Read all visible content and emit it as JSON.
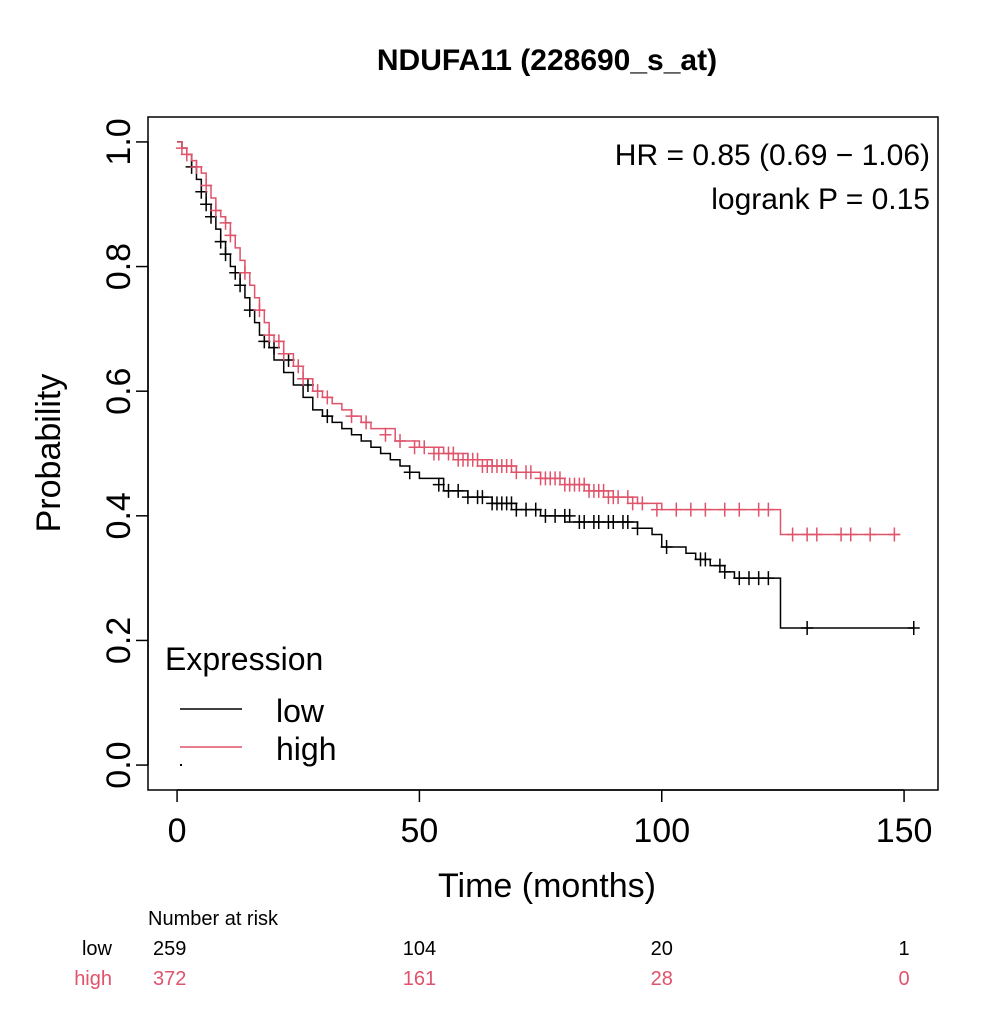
{
  "chart_data": {
    "type": "line",
    "title": "NDUFA11 (228690_s_at)",
    "xlabel": "Time (months)",
    "ylabel": "Probability",
    "xlim": [
      -6,
      157
    ],
    "ylim": [
      -0.04,
      1.04
    ],
    "x_ticks": [
      0,
      50,
      100,
      150
    ],
    "y_ticks": [
      0.0,
      0.2,
      0.4,
      0.6,
      0.8,
      1.0
    ],
    "x_tick_labels": [
      "0",
      "50",
      "100",
      "150"
    ],
    "y_tick_labels": [
      "0.0",
      "0.2",
      "0.4",
      "0.6",
      "0.8",
      "1.0"
    ],
    "grid": false,
    "annotations": [
      "HR = 0.85 (0.69 − 1.06)",
      "logrank P = 0.15"
    ],
    "legend": {
      "title": "Expression",
      "position": "bottom-left",
      "entries": [
        "low",
        "high"
      ]
    },
    "series": [
      {
        "name": "low",
        "color": "#000000",
        "step": true,
        "x": [
          0,
          1,
          2,
          3,
          4,
          5,
          6,
          7,
          8,
          9,
          10,
          11,
          12,
          13,
          14,
          15,
          16,
          17,
          18,
          19,
          20,
          22,
          24,
          26,
          28,
          30,
          32,
          34,
          36,
          38,
          40,
          42,
          44,
          46,
          48,
          50,
          55,
          60,
          65,
          70,
          75,
          80,
          85,
          90,
          95,
          98,
          100,
          103,
          105,
          107,
          110,
          113,
          115,
          120,
          124,
          124.5,
          130,
          140,
          152
        ],
        "y": [
          1.0,
          0.99,
          0.98,
          0.96,
          0.94,
          0.92,
          0.9,
          0.88,
          0.86,
          0.84,
          0.82,
          0.8,
          0.79,
          0.77,
          0.75,
          0.73,
          0.71,
          0.69,
          0.68,
          0.67,
          0.65,
          0.63,
          0.61,
          0.59,
          0.57,
          0.56,
          0.55,
          0.54,
          0.53,
          0.52,
          0.51,
          0.5,
          0.49,
          0.48,
          0.47,
          0.46,
          0.44,
          0.43,
          0.42,
          0.41,
          0.4,
          0.39,
          0.39,
          0.39,
          0.38,
          0.37,
          0.35,
          0.35,
          0.34,
          0.33,
          0.32,
          0.31,
          0.3,
          0.3,
          0.3,
          0.22,
          0.22,
          0.22,
          0.22
        ],
        "censor_x": [
          3,
          5,
          6,
          7,
          9,
          10,
          12,
          13,
          15,
          18,
          20,
          23,
          27,
          31,
          48,
          54,
          56,
          58,
          60,
          62,
          63,
          65,
          66,
          67,
          68,
          69,
          70,
          72,
          74,
          76,
          78,
          80,
          81,
          83,
          84,
          86,
          87,
          89,
          90,
          92,
          93,
          95,
          101,
          108,
          109,
          112,
          113,
          116,
          118,
          120,
          122,
          130,
          152
        ],
        "censor_y": [
          0.96,
          0.92,
          0.9,
          0.88,
          0.84,
          0.82,
          0.79,
          0.77,
          0.73,
          0.68,
          0.67,
          0.65,
          0.61,
          0.56,
          0.47,
          0.45,
          0.44,
          0.44,
          0.43,
          0.43,
          0.43,
          0.42,
          0.42,
          0.42,
          0.42,
          0.42,
          0.41,
          0.41,
          0.41,
          0.4,
          0.4,
          0.4,
          0.4,
          0.39,
          0.39,
          0.39,
          0.39,
          0.39,
          0.39,
          0.39,
          0.39,
          0.38,
          0.35,
          0.33,
          0.33,
          0.32,
          0.31,
          0.3,
          0.3,
          0.3,
          0.3,
          0.22,
          0.22
        ]
      },
      {
        "name": "high",
        "color": "#DF536B",
        "step": true,
        "x": [
          0,
          1,
          2,
          3,
          4,
          5,
          6,
          7,
          8,
          9,
          10,
          11,
          12,
          13,
          14,
          15,
          16,
          17,
          18,
          19,
          20,
          22,
          24,
          26,
          28,
          30,
          32,
          34,
          36,
          38,
          40,
          45,
          50,
          55,
          60,
          65,
          70,
          75,
          80,
          85,
          90,
          95,
          100,
          110,
          120,
          124,
          124.5,
          149
        ],
        "y": [
          1.0,
          0.99,
          0.98,
          0.97,
          0.96,
          0.95,
          0.93,
          0.91,
          0.89,
          0.88,
          0.87,
          0.85,
          0.83,
          0.81,
          0.79,
          0.77,
          0.75,
          0.73,
          0.71,
          0.69,
          0.68,
          0.66,
          0.64,
          0.62,
          0.6,
          0.59,
          0.58,
          0.57,
          0.56,
          0.55,
          0.54,
          0.52,
          0.51,
          0.5,
          0.49,
          0.48,
          0.47,
          0.46,
          0.45,
          0.44,
          0.43,
          0.42,
          0.41,
          0.41,
          0.41,
          0.41,
          0.37,
          0.37
        ],
        "censor_x": [
          1,
          2,
          4,
          6,
          8,
          10,
          11,
          14,
          17,
          19,
          21,
          22,
          25,
          26,
          29,
          31,
          36,
          39,
          43,
          46,
          49,
          51,
          53,
          54,
          56,
          57,
          58,
          59,
          60,
          61,
          62,
          63,
          64,
          65,
          66,
          67,
          68,
          69,
          70,
          72,
          73,
          75,
          76,
          77,
          78,
          79,
          80,
          81,
          82,
          83,
          84,
          85,
          86,
          87,
          88,
          89,
          90,
          91,
          93,
          94,
          96,
          99,
          103,
          106,
          109,
          113,
          116,
          120,
          122,
          127,
          130,
          132,
          137,
          139,
          143,
          148
        ],
        "censor_y": [
          0.99,
          0.98,
          0.96,
          0.93,
          0.89,
          0.87,
          0.85,
          0.79,
          0.73,
          0.69,
          0.68,
          0.66,
          0.64,
          0.62,
          0.6,
          0.59,
          0.56,
          0.55,
          0.53,
          0.52,
          0.51,
          0.51,
          0.5,
          0.5,
          0.5,
          0.5,
          0.49,
          0.49,
          0.49,
          0.49,
          0.49,
          0.48,
          0.48,
          0.48,
          0.48,
          0.48,
          0.48,
          0.48,
          0.47,
          0.47,
          0.47,
          0.46,
          0.46,
          0.46,
          0.46,
          0.46,
          0.45,
          0.45,
          0.45,
          0.45,
          0.45,
          0.44,
          0.44,
          0.44,
          0.44,
          0.43,
          0.43,
          0.43,
          0.43,
          0.42,
          0.42,
          0.41,
          0.41,
          0.41,
          0.41,
          0.41,
          0.41,
          0.41,
          0.41,
          0.37,
          0.37,
          0.37,
          0.37,
          0.37,
          0.37,
          0.37
        ]
      }
    ],
    "number_at_risk": {
      "heading": "Number at risk",
      "times": [
        0,
        50,
        100,
        150
      ],
      "rows": [
        {
          "label": "low",
          "color": "#000000",
          "values": [
            "259",
            "104",
            "20",
            "1"
          ]
        },
        {
          "label": "high",
          "color": "#DF536B",
          "values": [
            "372",
            "161",
            "28",
            "0"
          ]
        }
      ]
    }
  }
}
